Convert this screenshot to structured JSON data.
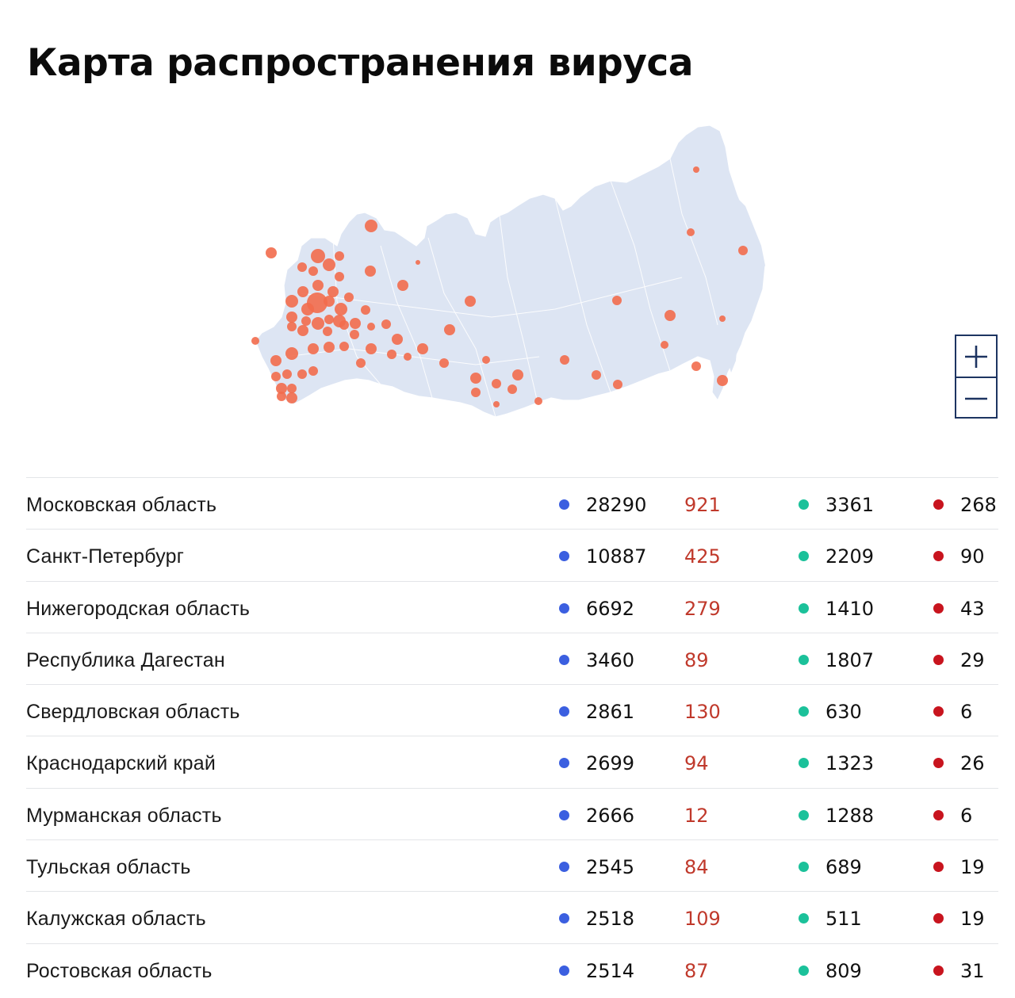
{
  "title": "Карта распространения вируса",
  "colors": {
    "cases": "#3b5fe0",
    "new": "#c0392b",
    "recovered": "#1bc19a",
    "deaths": "#c8141e",
    "map_land": "#dde5f3",
    "map_marker": "#f26b4d"
  },
  "map": {
    "zoom_in_icon": "plus-icon",
    "zoom_out_icon": "minus-icon"
  },
  "rows": [
    {
      "region": "Московская область",
      "cases": "28290",
      "new": "921",
      "recovered": "3361",
      "deaths": "268"
    },
    {
      "region": "Санкт-Петербург",
      "cases": "10887",
      "new": "425",
      "recovered": "2209",
      "deaths": "90"
    },
    {
      "region": "Нижегородская область",
      "cases": "6692",
      "new": "279",
      "recovered": "1410",
      "deaths": "43"
    },
    {
      "region": "Республика Дагестан",
      "cases": "3460",
      "new": "89",
      "recovered": "1807",
      "deaths": "29"
    },
    {
      "region": "Свердловская область",
      "cases": "2861",
      "new": "130",
      "recovered": "630",
      "deaths": "6"
    },
    {
      "region": "Краснодарский край",
      "cases": "2699",
      "new": "94",
      "recovered": "1323",
      "deaths": "26"
    },
    {
      "region": "Мурманская область",
      "cases": "2666",
      "new": "12",
      "recovered": "1288",
      "deaths": "6"
    },
    {
      "region": "Тульская область",
      "cases": "2545",
      "new": "84",
      "recovered": "689",
      "deaths": "19"
    },
    {
      "region": "Калужская область",
      "cases": "2518",
      "new": "109",
      "recovered": "511",
      "deaths": "19"
    },
    {
      "region": "Ростовская область",
      "cases": "2514",
      "new": "87",
      "recovered": "809",
      "deaths": "31"
    }
  ]
}
